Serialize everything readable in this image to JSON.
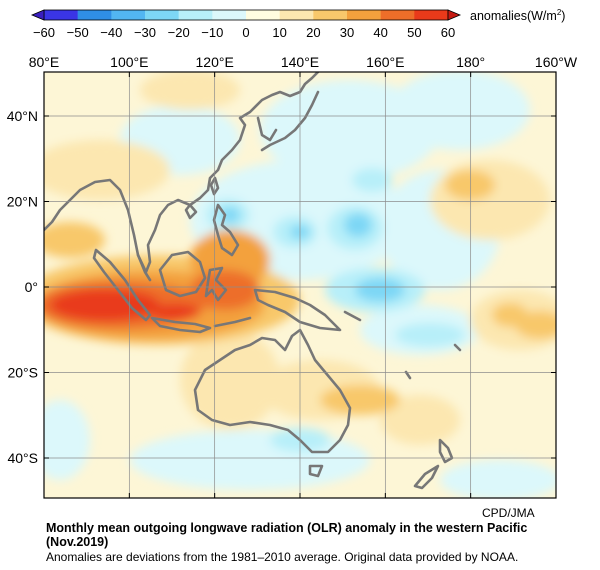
{
  "legend": {
    "ticks": [
      "−60",
      "−50",
      "−40",
      "−30",
      "−20",
      "−10",
      "0",
      "10",
      "20",
      "30",
      "40",
      "50",
      "60"
    ],
    "unit_prefix": "anomalies(W/m",
    "unit_sup": "2",
    "unit_suffix": ")",
    "colors": [
      "#3a35e6",
      "#2f8ee6",
      "#52b6f2",
      "#7dd7f5",
      "#b7eff9",
      "#dcf8fb",
      "#fffde0",
      "#fce7b0",
      "#f8c86b",
      "#f3a13d",
      "#ed6e29",
      "#e93a1a"
    ]
  },
  "map": {
    "lon_labels": [
      "80°E",
      "100°E",
      "120°E",
      "140°E",
      "160°E",
      "180°",
      "160°W"
    ],
    "lat_labels": [
      "40°N",
      "20°N",
      "0°",
      "20°S",
      "40°S"
    ],
    "coastline_color": "#777777"
  },
  "caption": {
    "credit": "CPD/JMA",
    "title": "Monthly mean outgoing longwave radiation (OLR) anomaly in the western Pacific (Nov.2019)",
    "note": "Anomalies are deviations from the 1981–2010 average. Original data provided by NOAA."
  }
}
